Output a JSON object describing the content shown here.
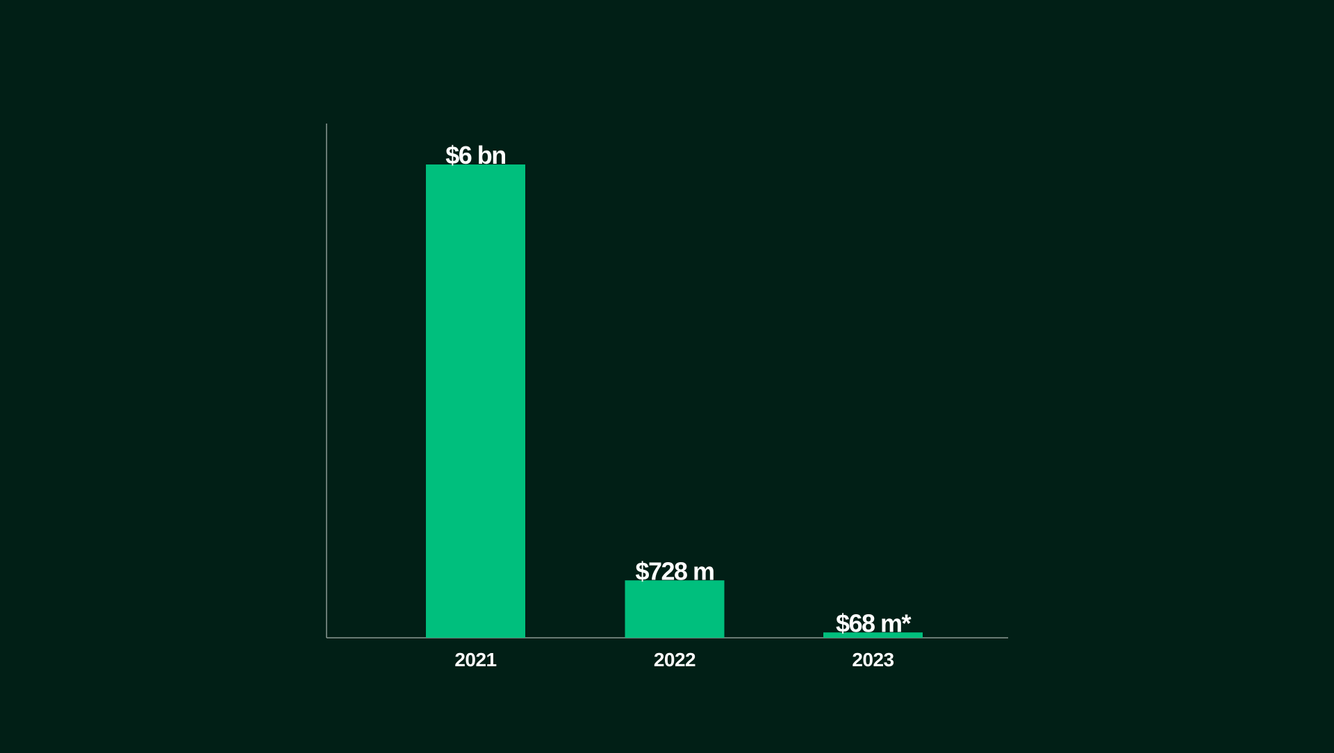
{
  "background_color": "#011f16",
  "chart_data": {
    "type": "bar",
    "categories": [
      "2021",
      "2022",
      "2023"
    ],
    "values": [
      6000,
      728,
      68
    ],
    "value_unit": "$ millions",
    "data_labels": [
      "$6 bn",
      "$728 m",
      "$68 m*"
    ],
    "title": "",
    "xlabel": "",
    "ylabel": "",
    "ylim": [
      0,
      6550
    ],
    "grid": false,
    "legend": "none",
    "colors": {
      "bar": "#00bf7d",
      "axis": "#8c9a94",
      "text": "#ffffff"
    }
  }
}
